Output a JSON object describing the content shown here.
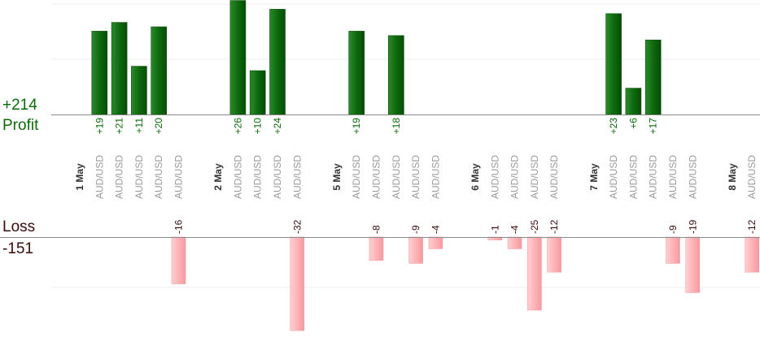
{
  "summary": {
    "profit_total": "+214",
    "profit_label": "Profit",
    "loss_label": "Loss",
    "loss_total": "-151"
  },
  "colors": {
    "profit_bar": "#0e6a0e",
    "loss_bar": "#ffb3b6",
    "profit_text": "#0a6a0a",
    "loss_text": "#3a0a0a",
    "date_text": "#333333",
    "symbol_text": "#9a9a9a"
  },
  "chart_data": {
    "type": "bar",
    "layout": "diverging profit/loss columns per trade",
    "y_label_profit": "Profit",
    "y_label_loss": "Loss",
    "slots": [
      {
        "kind": "date",
        "label": "1 May"
      },
      {
        "kind": "trade",
        "label": "AUD/USD",
        "profit": 19
      },
      {
        "kind": "trade",
        "label": "AUD/USD",
        "profit": 21
      },
      {
        "kind": "trade",
        "label": "AUD/USD",
        "profit": 11
      },
      {
        "kind": "trade",
        "label": "AUD/USD",
        "profit": 20
      },
      {
        "kind": "trade",
        "label": "AUD/USD",
        "loss": -16
      },
      {
        "kind": "gap"
      },
      {
        "kind": "date",
        "label": "2 May"
      },
      {
        "kind": "trade",
        "label": "AUD/USD",
        "profit": 26
      },
      {
        "kind": "trade",
        "label": "AUD/USD",
        "profit": 10
      },
      {
        "kind": "trade",
        "label": "AUD/USD",
        "profit": 24
      },
      {
        "kind": "trade",
        "label": "AUD/USD",
        "loss": -32
      },
      {
        "kind": "gap"
      },
      {
        "kind": "date",
        "label": "5 May"
      },
      {
        "kind": "trade",
        "label": "AUD/USD",
        "profit": 19
      },
      {
        "kind": "trade",
        "label": "AUD/USD",
        "loss": -8
      },
      {
        "kind": "trade",
        "label": "AUD/USD",
        "profit": 18
      },
      {
        "kind": "trade",
        "label": "AUD/USD",
        "loss": -9
      },
      {
        "kind": "trade",
        "label": "AUD/USD",
        "loss": -4
      },
      {
        "kind": "gap"
      },
      {
        "kind": "date",
        "label": "6 May"
      },
      {
        "kind": "trade",
        "label": "AUD/USD",
        "loss": -1
      },
      {
        "kind": "trade",
        "label": "AUD/USD",
        "loss": -4
      },
      {
        "kind": "trade",
        "label": "AUD/USD",
        "loss": -25
      },
      {
        "kind": "trade",
        "label": "AUD/USD",
        "loss": -12
      },
      {
        "kind": "gap"
      },
      {
        "kind": "date",
        "label": "7 May"
      },
      {
        "kind": "trade",
        "label": "AUD/USD",
        "profit": 23
      },
      {
        "kind": "trade",
        "label": "AUD/USD",
        "profit": 6
      },
      {
        "kind": "trade",
        "label": "AUD/USD",
        "profit": 17
      },
      {
        "kind": "trade",
        "label": "AUD/USD",
        "loss": -9
      },
      {
        "kind": "trade",
        "label": "AUD/USD",
        "loss": -19
      },
      {
        "kind": "gap"
      },
      {
        "kind": "date",
        "label": "8 May"
      },
      {
        "kind": "trade",
        "label": "AUD/USD",
        "loss": -12
      }
    ]
  }
}
